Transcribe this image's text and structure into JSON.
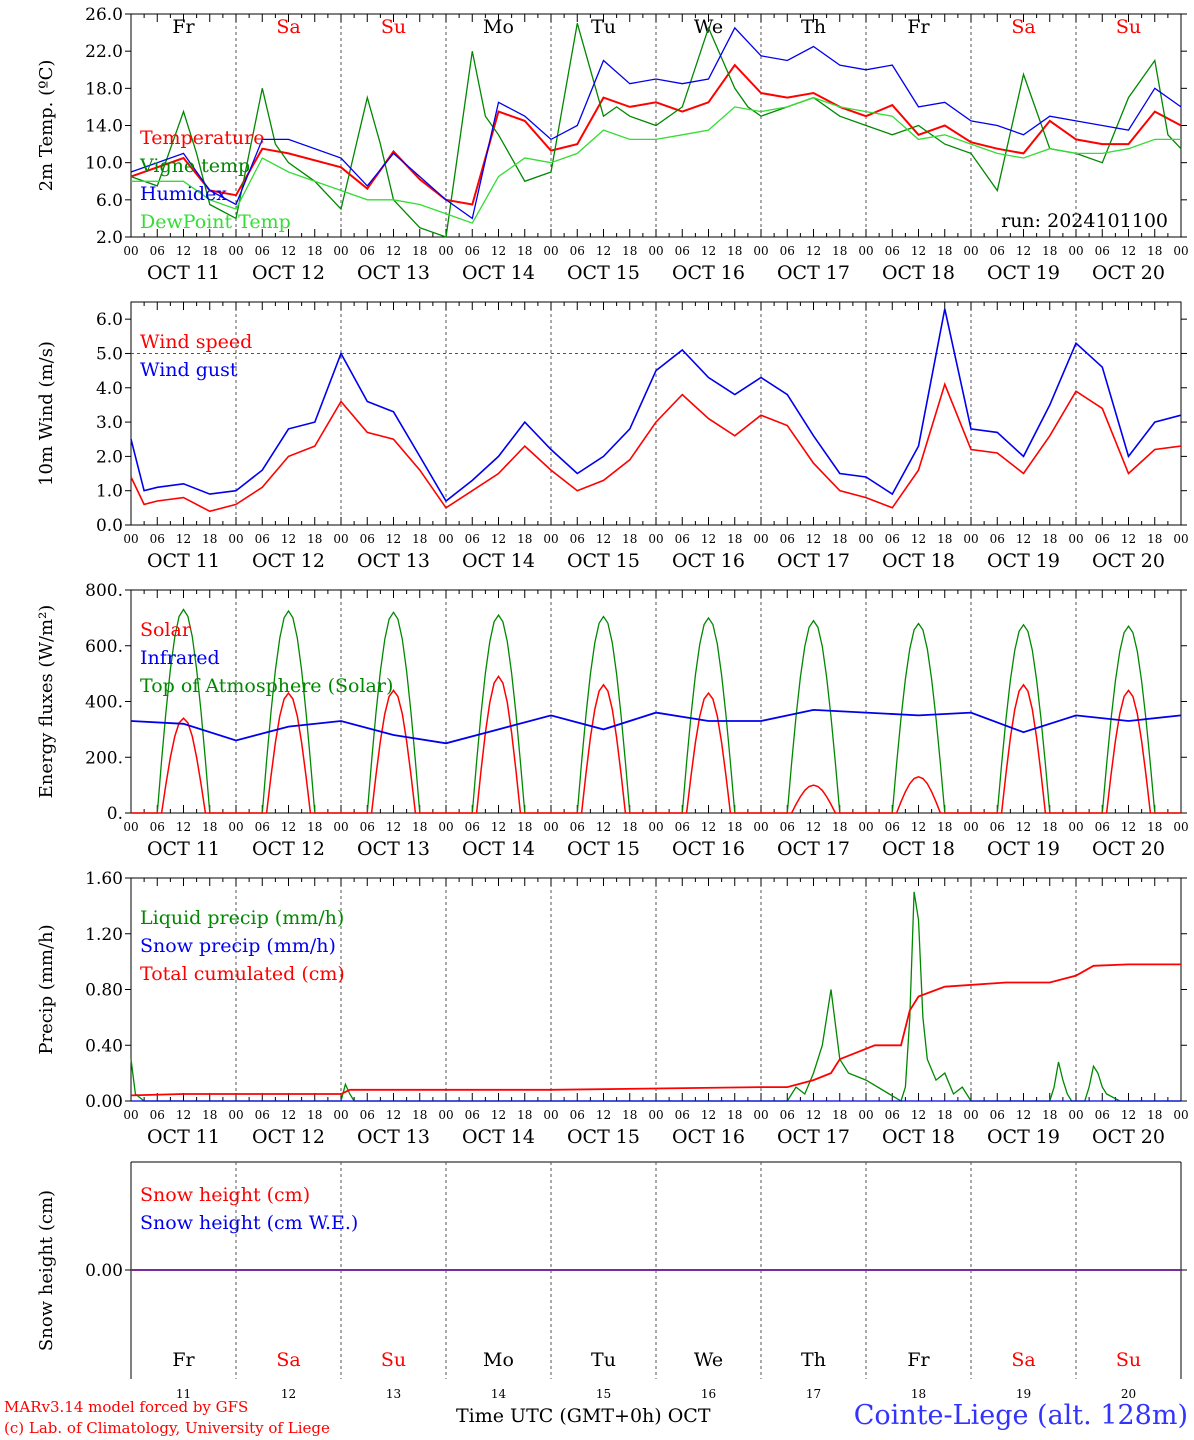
{
  "days": [
    "Fr",
    "Sa",
    "Su",
    "Mo",
    "Tu",
    "We",
    "Th",
    "Fr",
    "Sa",
    "Su"
  ],
  "weekend_days": [
    1,
    2,
    8,
    9
  ],
  "dates": [
    "OCT 11",
    "OCT 12",
    "OCT 13",
    "OCT 14",
    "OCT 15",
    "OCT 16",
    "OCT 17",
    "OCT 18",
    "OCT 19",
    "OCT 20"
  ],
  "date_numbers": [
    "11",
    "12",
    "13",
    "14",
    "15",
    "16",
    "17",
    "18",
    "19",
    "20"
  ],
  "hour_ticks": [
    "00",
    "06",
    "12",
    "18"
  ],
  "run_label": "run: 2024101100",
  "footer": {
    "model_line": "MARv3.14 model forced by GFS",
    "copyright_line": "(c) Lab. of Climatology, University of Liege",
    "time_axis": "Time UTC (GMT+0h) OCT",
    "station": "Cointe-Liege (alt. 128m)"
  },
  "colors": {
    "red": "#ff0000",
    "green": "#008800",
    "blue": "#0000ee",
    "lightgreen": "#33dd33",
    "purple": "#7a2a9a",
    "weekend": "#ff0000",
    "grid": "#555555"
  },
  "chart_data": [
    {
      "type": "line",
      "ylabel": "2m Temp. (ºC)",
      "ylim": [
        2.0,
        26.0
      ],
      "yticks": [
        "2.0",
        "6.0",
        "10.0",
        "14.0",
        "18.0",
        "22.0",
        "26.0"
      ],
      "x_hours_range": [
        0,
        240
      ],
      "series": [
        {
          "name": "Temperature",
          "color": "#ff0000",
          "x": [
            0,
            12,
            18,
            24,
            30,
            36,
            48,
            54,
            60,
            66,
            72,
            78,
            84,
            90,
            96,
            102,
            108,
            114,
            120,
            126,
            132,
            138,
            144,
            150,
            156,
            162,
            168,
            174,
            180,
            186,
            192,
            198,
            204,
            210,
            216,
            222,
            228,
            234,
            240
          ],
          "values": [
            8.5,
            10.5,
            7.0,
            6.5,
            11.5,
            11.0,
            9.5,
            7.2,
            11.2,
            8.2,
            6.0,
            5.5,
            15.5,
            14.5,
            11.3,
            12.0,
            17.0,
            16.0,
            16.5,
            15.5,
            16.5,
            20.5,
            17.5,
            17.0,
            17.5,
            16.0,
            15.0,
            16.2,
            13.0,
            14.0,
            12.2,
            11.5,
            11.0,
            14.5,
            12.5,
            12.0,
            12.0,
            15.5,
            14.0
          ]
        },
        {
          "name": "Vigne temp",
          "color": "#008800",
          "x": [
            0,
            6,
            12,
            15,
            18,
            24,
            30,
            33,
            36,
            42,
            48,
            54,
            57,
            60,
            66,
            72,
            78,
            81,
            84,
            90,
            96,
            102,
            108,
            111,
            114,
            120,
            126,
            132,
            138,
            141,
            144,
            150,
            156,
            162,
            168,
            174,
            180,
            186,
            192,
            198,
            204,
            210,
            216,
            222,
            228,
            234,
            237,
            240
          ],
          "values": [
            8.5,
            7.5,
            15.5,
            11.0,
            5.5,
            4.0,
            18.0,
            12.0,
            10.0,
            8.0,
            5.0,
            17.0,
            12.0,
            6.0,
            3.0,
            2.0,
            22.0,
            15.0,
            13.0,
            8.0,
            9.0,
            25.0,
            15.0,
            16.0,
            15.0,
            14.0,
            16.0,
            24.5,
            18.0,
            16.0,
            15.0,
            16.0,
            17.0,
            15.0,
            14.0,
            13.0,
            14.0,
            12.0,
            11.0,
            7.0,
            19.5,
            11.5,
            11.0,
            10.0,
            17.0,
            21.0,
            13.0,
            11.5
          ]
        },
        {
          "name": "Humidex",
          "color": "#0000ee",
          "x": [
            0,
            12,
            18,
            24,
            30,
            36,
            48,
            54,
            60,
            66,
            72,
            78,
            84,
            90,
            96,
            102,
            108,
            114,
            120,
            126,
            132,
            138,
            144,
            150,
            156,
            162,
            168,
            174,
            180,
            186,
            192,
            198,
            204,
            210,
            216,
            222,
            228,
            234,
            240
          ],
          "values": [
            9.0,
            11.0,
            7.0,
            5.5,
            12.5,
            12.5,
            10.5,
            7.5,
            11.0,
            8.5,
            6.0,
            4.0,
            16.5,
            15.0,
            12.5,
            14.0,
            21.0,
            18.5,
            19.0,
            18.5,
            19.0,
            24.5,
            21.5,
            21.0,
            22.5,
            20.5,
            20.0,
            20.5,
            16.0,
            16.5,
            14.5,
            14.0,
            13.0,
            15.0,
            14.5,
            14.0,
            13.5,
            18.0,
            16.0
          ]
        },
        {
          "name": "DewPoint Temp",
          "color": "#33dd33",
          "x": [
            0,
            12,
            18,
            24,
            30,
            36,
            48,
            54,
            60,
            66,
            72,
            78,
            84,
            90,
            96,
            102,
            108,
            114,
            120,
            126,
            132,
            138,
            144,
            150,
            156,
            162,
            168,
            174,
            180,
            186,
            192,
            198,
            204,
            210,
            216,
            222,
            228,
            234,
            240
          ],
          "values": [
            8.0,
            8.0,
            6.0,
            5.0,
            10.5,
            9.0,
            7.0,
            6.0,
            6.0,
            5.5,
            4.5,
            3.5,
            8.5,
            10.5,
            10.0,
            11.0,
            13.5,
            12.5,
            12.5,
            13.0,
            13.5,
            16.0,
            15.5,
            16.0,
            17.0,
            16.0,
            15.5,
            15.0,
            12.5,
            13.0,
            12.0,
            11.0,
            10.5,
            11.5,
            11.0,
            11.0,
            11.5,
            12.5,
            12.5
          ]
        }
      ]
    },
    {
      "type": "line",
      "ylabel": "10m Wind (m/s)",
      "ylim": [
        0.0,
        6.5
      ],
      "yticks": [
        "0.0",
        "1.0",
        "2.0",
        "3.0",
        "4.0",
        "5.0",
        "6.0"
      ],
      "ref_line": 5.0,
      "series": [
        {
          "name": "Wind speed",
          "color": "#ff0000",
          "x": [
            0,
            3,
            6,
            12,
            18,
            24,
            30,
            36,
            42,
            48,
            54,
            60,
            66,
            72,
            78,
            84,
            90,
            96,
            102,
            108,
            114,
            120,
            126,
            132,
            138,
            144,
            150,
            156,
            162,
            168,
            174,
            180,
            186,
            192,
            198,
            204,
            210,
            216,
            222,
            228,
            234,
            240
          ],
          "values": [
            1.4,
            0.6,
            0.7,
            0.8,
            0.4,
            0.6,
            1.1,
            2.0,
            2.3,
            3.6,
            2.7,
            2.5,
            1.6,
            0.5,
            1.0,
            1.5,
            2.3,
            1.6,
            1.0,
            1.3,
            1.9,
            3.0,
            3.8,
            3.1,
            2.6,
            3.2,
            2.9,
            1.8,
            1.0,
            0.8,
            0.5,
            1.6,
            4.1,
            2.2,
            2.1,
            1.5,
            2.6,
            3.9,
            3.4,
            1.5,
            2.2,
            2.3
          ]
        },
        {
          "name": "Wind gust",
          "color": "#0000ee",
          "x": [
            0,
            3,
            6,
            12,
            18,
            24,
            30,
            36,
            42,
            48,
            54,
            60,
            66,
            72,
            78,
            84,
            90,
            96,
            102,
            108,
            114,
            120,
            126,
            132,
            138,
            144,
            150,
            156,
            162,
            168,
            174,
            180,
            186,
            192,
            198,
            204,
            210,
            216,
            222,
            228,
            234,
            240
          ],
          "values": [
            2.5,
            1.0,
            1.1,
            1.2,
            0.9,
            1.0,
            1.6,
            2.8,
            3.0,
            5.0,
            3.6,
            3.3,
            2.0,
            0.7,
            1.3,
            2.0,
            3.0,
            2.2,
            1.5,
            2.0,
            2.8,
            4.5,
            5.1,
            4.3,
            3.8,
            4.3,
            3.8,
            2.6,
            1.5,
            1.4,
            0.9,
            2.3,
            6.3,
            2.8,
            2.7,
            2.0,
            3.5,
            5.3,
            4.6,
            2.0,
            3.0,
            3.2
          ]
        }
      ]
    },
    {
      "type": "line",
      "ylabel": "Energy fluxes (W/m²)",
      "ylim": [
        0,
        800
      ],
      "yticks": [
        "0.",
        "200.",
        "400.",
        "600.",
        "800."
      ],
      "series": [
        {
          "name": "Solar",
          "color": "#ff0000",
          "peaks": [
            340,
            430,
            440,
            490,
            460,
            430,
            100,
            130,
            460,
            440
          ],
          "peak_halfwidth": 5
        },
        {
          "name": "Infrared",
          "color": "#0000ee",
          "x": [
            0,
            12,
            24,
            36,
            48,
            60,
            72,
            84,
            96,
            108,
            120,
            132,
            144,
            156,
            168,
            180,
            192,
            204,
            216,
            228,
            240
          ],
          "values": [
            330,
            320,
            260,
            310,
            330,
            280,
            250,
            300,
            350,
            300,
            360,
            330,
            330,
            370,
            360,
            350,
            360,
            290,
            350,
            330,
            350
          ]
        },
        {
          "name": "Top of Atmosphere (Solar)",
          "color": "#008800",
          "peaks": [
            730,
            725,
            720,
            710,
            705,
            700,
            690,
            680,
            675,
            670
          ],
          "peak_halfwidth": 6
        }
      ]
    },
    {
      "type": "line",
      "ylabel": "Precip (mm/h)",
      "ylim": [
        0.0,
        1.6
      ],
      "yticks": [
        "0.00",
        "0.40",
        "0.80",
        "1.20",
        "1.60"
      ],
      "series": [
        {
          "name": "Liquid precip (mm/h)",
          "color": "#008800",
          "x": [
            0,
            1,
            3,
            6,
            48,
            49,
            50,
            51,
            52,
            140,
            150,
            152,
            154,
            156,
            158,
            160,
            162,
            164,
            168,
            176,
            177,
            178,
            179,
            180,
            181,
            182,
            184,
            186,
            188,
            190,
            192,
            200,
            210,
            211,
            212,
            213,
            214,
            215,
            218,
            219,
            220,
            221,
            222,
            223,
            226,
            240
          ],
          "values": [
            0.3,
            0.05,
            0.0,
            0.0,
            0.0,
            0.12,
            0.05,
            0.0,
            0.0,
            0.0,
            0.0,
            0.1,
            0.05,
            0.2,
            0.4,
            0.8,
            0.3,
            0.2,
            0.15,
            0.0,
            0.1,
            0.6,
            1.5,
            1.3,
            0.6,
            0.3,
            0.15,
            0.2,
            0.05,
            0.1,
            0.0,
            0.0,
            0.0,
            0.1,
            0.28,
            0.15,
            0.05,
            0.0,
            0.0,
            0.1,
            0.25,
            0.2,
            0.1,
            0.05,
            0.0,
            0.0
          ]
        },
        {
          "name": "Snow precip (mm/h)",
          "color": "#0000ee",
          "x": [
            0,
            240
          ],
          "values": [
            0.0,
            0.0
          ]
        },
        {
          "name": "Total cumulated (cm)",
          "color": "#ff0000",
          "x": [
            0,
            12,
            48,
            50,
            96,
            120,
            144,
            150,
            156,
            160,
            162,
            170,
            176,
            178,
            180,
            186,
            200,
            210,
            216,
            220,
            228,
            240
          ],
          "values": [
            0.04,
            0.05,
            0.05,
            0.08,
            0.08,
            0.09,
            0.1,
            0.1,
            0.15,
            0.2,
            0.3,
            0.4,
            0.4,
            0.65,
            0.75,
            0.82,
            0.85,
            0.85,
            0.9,
            0.97,
            0.98,
            0.98
          ]
        }
      ]
    },
    {
      "type": "line",
      "ylabel": "Snow height (cm)",
      "yticks": [
        "0.00"
      ],
      "series": [
        {
          "name": "Snow height (cm)",
          "color": "#ff0000",
          "x": [
            0,
            240
          ],
          "values": [
            0,
            0
          ]
        },
        {
          "name": "Snow height (cm W.E.)",
          "color": "#0000ee",
          "x": [
            0,
            240
          ],
          "values": [
            0,
            0
          ]
        }
      ]
    }
  ]
}
